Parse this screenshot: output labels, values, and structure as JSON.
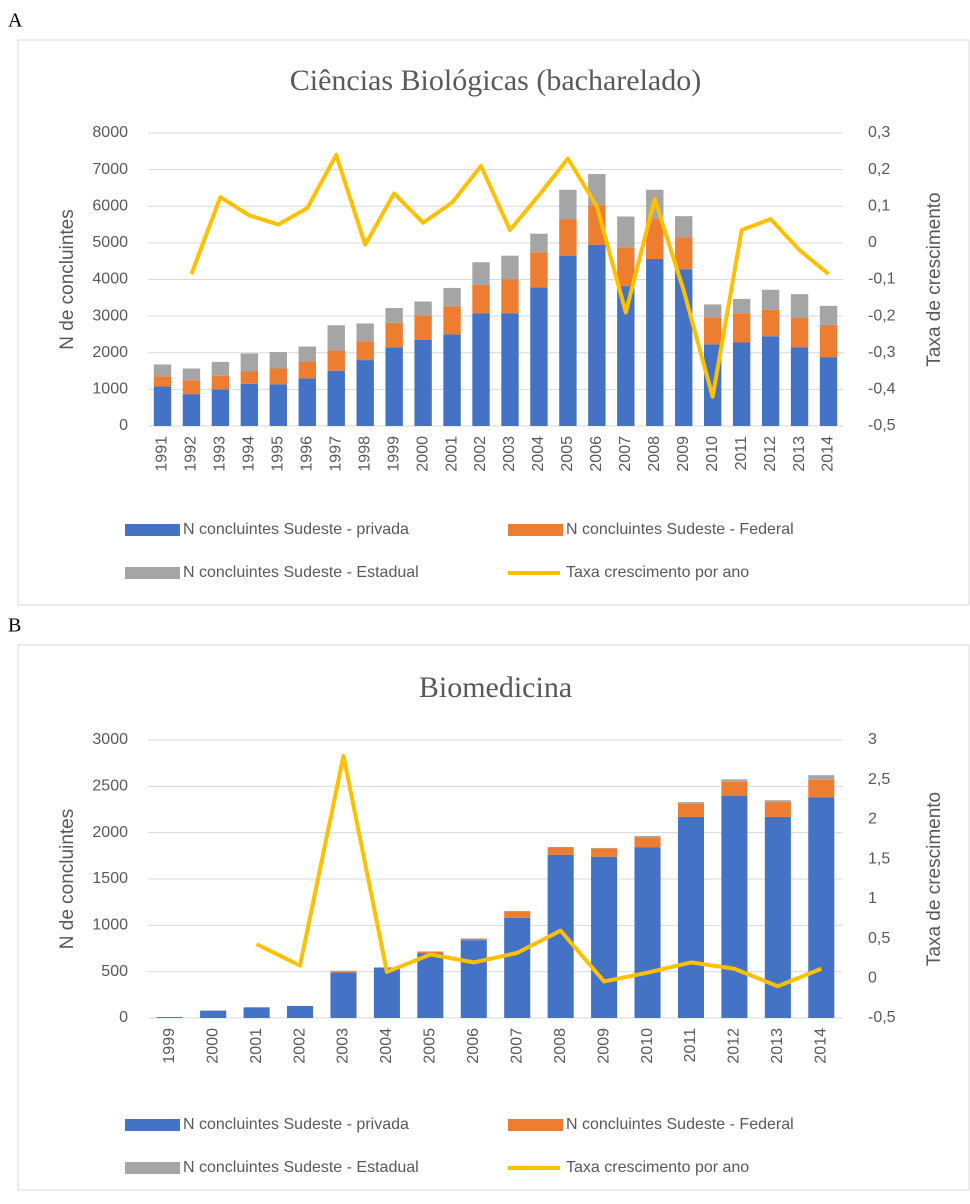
{
  "chart_data": [
    {
      "type": "bar",
      "label": "A",
      "title": "Ciências Biológicas (bacharelado)",
      "ylabel": "N de concluintes",
      "y2label": "Taxa de crescimento",
      "categories": [
        "1991",
        "1992",
        "1993",
        "1994",
        "1995",
        "1996",
        "1997",
        "1998",
        "1999",
        "2000",
        "2001",
        "2002",
        "2003",
        "2004",
        "2005",
        "2006",
        "2007",
        "2008",
        "2009",
        "2010",
        "2011",
        "2012",
        "2013",
        "2014"
      ],
      "series": [
        {
          "name": "N concluintes Sudeste - privada",
          "color": "#4472c4",
          "values": [
            1080,
            870,
            1000,
            1150,
            1140,
            1300,
            1510,
            1800,
            2150,
            2350,
            2500,
            3080,
            3080,
            3780,
            4650,
            4950,
            3820,
            4560,
            4280,
            2230,
            2280,
            2450,
            2150,
            1880
          ]
        },
        {
          "name": "N concluintes Sudeste - Federal",
          "color": "#ed7d31",
          "values": [
            270,
            380,
            370,
            350,
            430,
            460,
            550,
            510,
            670,
            670,
            770,
            770,
            920,
            960,
            1000,
            1080,
            1050,
            1090,
            870,
            720,
            800,
            720,
            800,
            880
          ]
        },
        {
          "name": "N concluintes Sudeste - Estadual",
          "color": "#a5a5a5",
          "values": [
            330,
            320,
            380,
            480,
            450,
            410,
            690,
            490,
            400,
            380,
            500,
            620,
            650,
            510,
            800,
            850,
            850,
            800,
            580,
            370,
            390,
            550,
            650,
            520
          ]
        },
        {
          "name": "Taxa crescimento por ano",
          "color": "#ffc000",
          "type": "line",
          "axis": "y2",
          "values": [
            null,
            -0.085,
            0.125,
            0.075,
            0.05,
            0.095,
            0.24,
            -0.005,
            0.135,
            0.055,
            0.11,
            0.21,
            0.035,
            0.13,
            0.23,
            0.1,
            -0.19,
            0.12,
            -0.13,
            -0.42,
            0.035,
            0.065,
            -0.02,
            -0.085
          ]
        }
      ],
      "stacked": true,
      "grid": true,
      "ylim": [
        0,
        8000
      ],
      "yticks": [
        0,
        1000,
        2000,
        3000,
        4000,
        5000,
        6000,
        7000,
        8000
      ],
      "y2lim": [
        -0.5,
        0.3
      ],
      "y2ticks": [
        {
          "value": -0.5,
          "label": "-0,5"
        },
        {
          "value": -0.4,
          "label": "-0,4"
        },
        {
          "value": -0.3,
          "label": "-0,3"
        },
        {
          "value": -0.2,
          "label": "-0,2"
        },
        {
          "value": -0.1,
          "label": "-0,1"
        },
        0,
        {
          "value": 0.1,
          "label": "0,1"
        },
        {
          "value": 0.2,
          "label": "0,2"
        },
        {
          "value": 0.3,
          "label": "0,3"
        }
      ],
      "legend": "bottom"
    },
    {
      "type": "bar",
      "label": "B",
      "title": "Biomedicina",
      "ylabel": "N de concluintes",
      "y2label": "Taxa de crescimento",
      "categories": [
        "1999",
        "2000",
        "2001",
        "2002",
        "2003",
        "2004",
        "2005",
        "2006",
        "2007",
        "2008",
        "2009",
        "2010",
        "2011",
        "2012",
        "2013",
        "2014"
      ],
      "series": [
        {
          "name": "N concluintes Sudeste - privada",
          "color": "#4472c4",
          "values": [
            10,
            80,
            115,
            130,
            490,
            545,
            700,
            840,
            1080,
            1760,
            1740,
            1840,
            2170,
            2400,
            2170,
            2380
          ]
        },
        {
          "name": "N concluintes Sudeste - Federal",
          "color": "#ed7d31",
          "values": [
            0,
            0,
            0,
            0,
            15,
            0,
            15,
            15,
            70,
            80,
            90,
            110,
            140,
            150,
            160,
            190
          ]
        },
        {
          "name": "N concluintes Sudeste - Estadual",
          "color": "#a5a5a5",
          "values": [
            0,
            0,
            0,
            0,
            5,
            0,
            5,
            5,
            5,
            5,
            5,
            15,
            20,
            25,
            20,
            50
          ]
        },
        {
          "name": "Taxa crescimento por ano",
          "color": "#ffc000",
          "type": "line",
          "axis": "y2",
          "values": [
            null,
            null,
            0.43,
            0.16,
            2.8,
            0.08,
            0.3,
            0.2,
            0.32,
            0.6,
            -0.04,
            0.07,
            0.2,
            0.12,
            -0.1,
            0.12
          ]
        }
      ],
      "stacked": true,
      "grid": true,
      "ylim": [
        0,
        3000
      ],
      "yticks": [
        0,
        500,
        1000,
        1500,
        2000,
        2500,
        3000
      ],
      "y2lim": [
        -0.5,
        3
      ],
      "y2ticks": [
        {
          "value": -0.5,
          "label": "-0,5"
        },
        0,
        {
          "value": 0.5,
          "label": "0,5"
        },
        1,
        {
          "value": 1.5,
          "label": "1,5"
        },
        2,
        {
          "value": 2.5,
          "label": "2,5"
        },
        3
      ],
      "legend": "bottom"
    }
  ]
}
